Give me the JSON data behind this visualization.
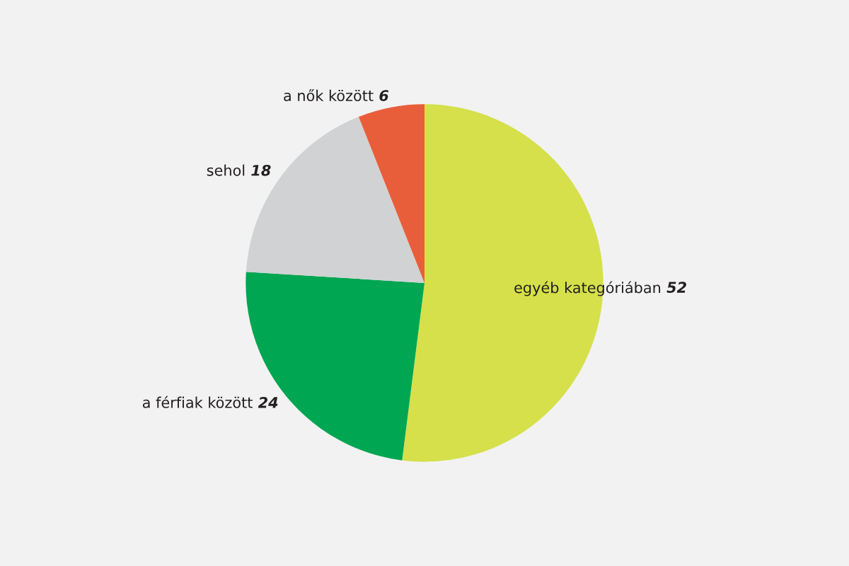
{
  "chart_data": {
    "type": "pie",
    "categories": [
      "egyéb kategóriában",
      "a férfiak között",
      "sehol",
      "a nők között"
    ],
    "values": [
      52,
      24,
      18,
      6
    ],
    "colors": [
      "#d5e04a",
      "#00a651",
      "#d1d2d3",
      "#e95e3a"
    ],
    "data_labels": true
  }
}
